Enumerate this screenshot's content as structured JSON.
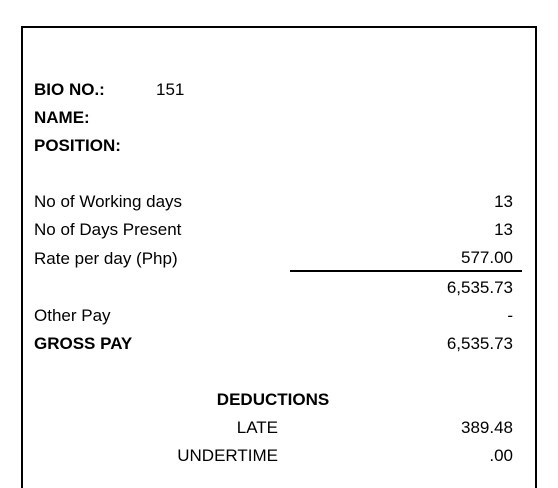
{
  "header": {
    "bio_no_label": "BIO NO.:",
    "bio_no_value": "151",
    "name_label": "NAME:",
    "position_label": "POSITION:"
  },
  "attendance": {
    "working_days_label": "No of Working days",
    "working_days_value": "13",
    "days_present_label": "No of Days Present",
    "days_present_value": "13",
    "rate_label": "Rate per day (Php)",
    "rate_value": "577.00",
    "subtotal_value": "6,535.73"
  },
  "pay": {
    "other_pay_label": "Other Pay",
    "other_pay_value": "-",
    "gross_pay_label": "GROSS PAY",
    "gross_pay_value": "6,535.73"
  },
  "deductions": {
    "title": "DEDUCTIONS",
    "late_label": "LATE",
    "late_value": "389.48",
    "undertime_label": "UNDERTIME",
    "undertime_value": ".00"
  }
}
